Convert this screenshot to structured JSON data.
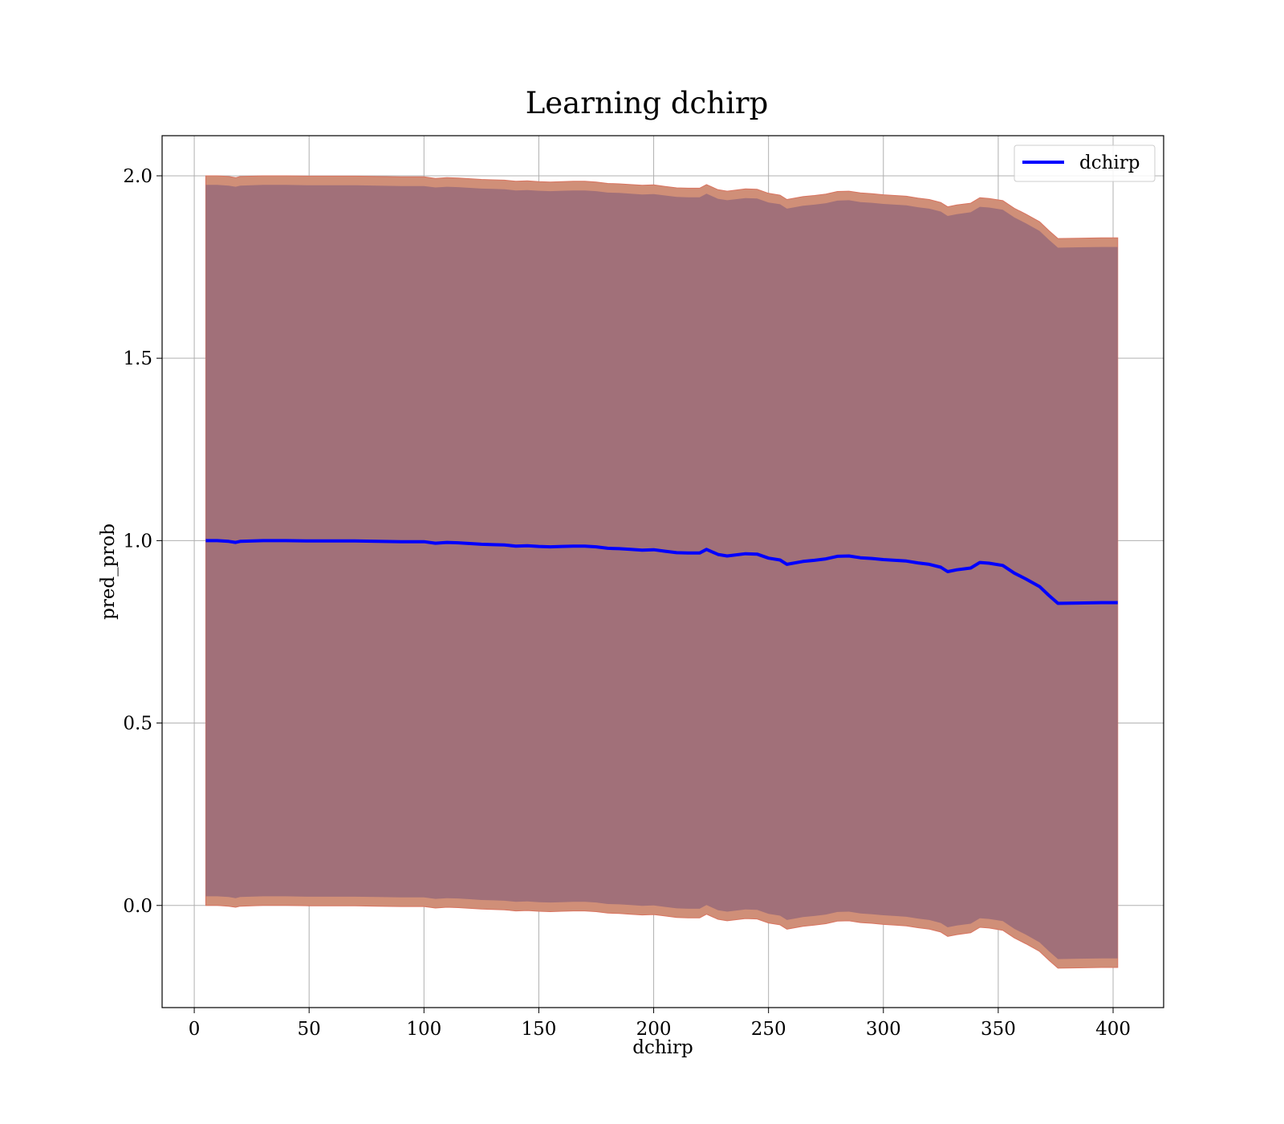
{
  "chart_data": {
    "type": "line",
    "title": "Learning dchirp",
    "xlabel": "dchirp",
    "ylabel": "pred_prob",
    "xlim": [
      -14,
      422
    ],
    "ylim": [
      -0.28,
      2.11
    ],
    "xticks": [
      0,
      50,
      100,
      150,
      200,
      250,
      300,
      350,
      400
    ],
    "yticks": [
      0.0,
      0.5,
      1.0,
      1.5,
      2.0
    ],
    "xtick_labels": [
      "0",
      "50",
      "100",
      "150",
      "200",
      "250",
      "300",
      "350",
      "400"
    ],
    "ytick_labels": [
      "0.0",
      "0.5",
      "1.0",
      "1.5",
      "2.0"
    ],
    "grid": true,
    "legend_position": "top-right",
    "series": [
      {
        "name": "dchirp",
        "color": "#0000ff",
        "x": [
          5,
          10,
          15,
          18,
          20,
          30,
          40,
          50,
          60,
          70,
          80,
          90,
          100,
          105,
          110,
          115,
          120,
          125,
          130,
          135,
          140,
          145,
          150,
          155,
          160,
          165,
          170,
          175,
          180,
          185,
          190,
          195,
          200,
          205,
          210,
          215,
          220,
          223,
          228,
          232,
          240,
          245,
          250,
          255,
          258,
          265,
          270,
          275,
          280,
          285,
          290,
          295,
          300,
          305,
          310,
          315,
          320,
          325,
          328,
          332,
          338,
          342,
          346,
          352,
          357,
          362,
          368,
          372,
          376,
          385,
          395,
          402
        ],
        "y": [
          1.0,
          1.0,
          0.998,
          0.995,
          0.998,
          1.0,
          1.0,
          0.999,
          0.999,
          0.999,
          0.998,
          0.997,
          0.997,
          0.993,
          0.995,
          0.994,
          0.992,
          0.99,
          0.989,
          0.988,
          0.985,
          0.986,
          0.984,
          0.983,
          0.984,
          0.985,
          0.985,
          0.983,
          0.979,
          0.978,
          0.976,
          0.974,
          0.975,
          0.971,
          0.967,
          0.966,
          0.966,
          0.976,
          0.962,
          0.958,
          0.964,
          0.963,
          0.952,
          0.947,
          0.935,
          0.943,
          0.946,
          0.95,
          0.957,
          0.958,
          0.953,
          0.951,
          0.948,
          0.946,
          0.944,
          0.939,
          0.935,
          0.927,
          0.915,
          0.92,
          0.925,
          0.94,
          0.938,
          0.932,
          0.911,
          0.895,
          0.874,
          0.85,
          0.828,
          0.829,
          0.83,
          0.83
        ]
      }
    ],
    "bands": [
      {
        "color": "#d08f78",
        "width": [
          1.0,
          1.0,
          1.0,
          1.0,
          1.0,
          1.0,
          1.0,
          1.0,
          1.0,
          1.0,
          1.0,
          1.0,
          1.0,
          1.0,
          1.0,
          1.0,
          1.0,
          1.0,
          1.0,
          1.0,
          1.0,
          1.0,
          1.0,
          1.0,
          1.0,
          1.0,
          1.0,
          1.0,
          1.0,
          1.0,
          1.0,
          1.0,
          1.0,
          1.0,
          1.0,
          1.0,
          1.0,
          1.0,
          1.0,
          1.0,
          1.0,
          1.0,
          1.0,
          1.0,
          1.0,
          1.0,
          1.0,
          1.0,
          1.0,
          1.0,
          1.0,
          1.0,
          1.0,
          1.0,
          1.0,
          1.0,
          1.0,
          1.0,
          1.0,
          1.0,
          1.0,
          1.0,
          1.0,
          1.0,
          1.0,
          1.0,
          1.0,
          1.0,
          1.0,
          1.0,
          1.0,
          1.0
        ]
      },
      {
        "color": "#a17079",
        "width": [
          0.975,
          0.975,
          0.975,
          0.975,
          0.975,
          0.975,
          0.975,
          0.975,
          0.975,
          0.975,
          0.975,
          0.975,
          0.975,
          0.975,
          0.975,
          0.975,
          0.975,
          0.975,
          0.975,
          0.975,
          0.975,
          0.975,
          0.975,
          0.975,
          0.975,
          0.975,
          0.975,
          0.975,
          0.975,
          0.975,
          0.975,
          0.975,
          0.975,
          0.975,
          0.975,
          0.975,
          0.975,
          0.975,
          0.975,
          0.975,
          0.975,
          0.975,
          0.975,
          0.975,
          0.975,
          0.975,
          0.975,
          0.975,
          0.975,
          0.975,
          0.975,
          0.975,
          0.975,
          0.975,
          0.975,
          0.975,
          0.975,
          0.975,
          0.975,
          0.975,
          0.975,
          0.975,
          0.975,
          0.975,
          0.975,
          0.975,
          0.975,
          0.975,
          0.975,
          0.975,
          0.975,
          0.975
        ]
      }
    ]
  }
}
